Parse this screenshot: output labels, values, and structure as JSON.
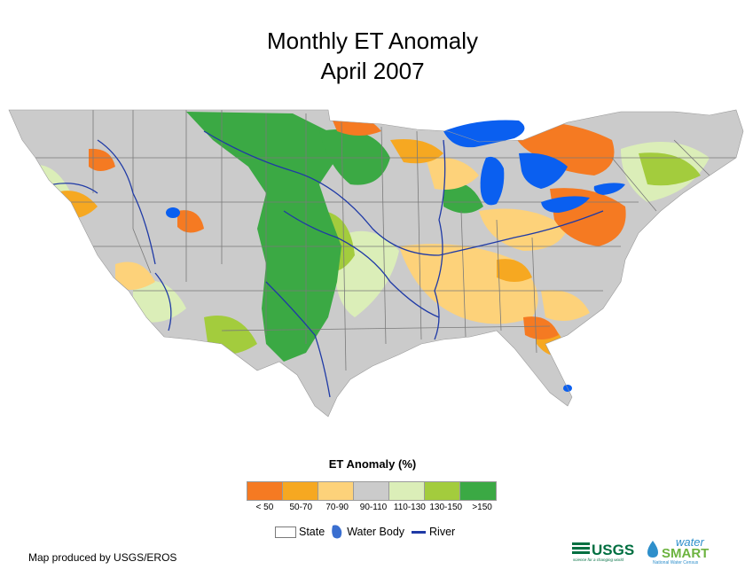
{
  "title": {
    "line1": "Monthly ET Anomaly",
    "line2": "April 2007"
  },
  "legend": {
    "title": "ET Anomaly (%)",
    "classes": [
      {
        "label": "< 50",
        "color": "#f57a22"
      },
      {
        "label": "50-70",
        "color": "#f6a821"
      },
      {
        "label": "70-90",
        "color": "#fdd27a"
      },
      {
        "label": "90-110",
        "color": "#cbcbcb"
      },
      {
        "label": "110-130",
        "color": "#dbeeb8"
      },
      {
        "label": "130-150",
        "color": "#a3cc3d"
      },
      {
        "label": ">150",
        "color": "#3ba944"
      }
    ],
    "symbols": {
      "state": "State",
      "water_body": "Water Body",
      "river": "River"
    }
  },
  "colors": {
    "water": "#0a5ff0",
    "river": "#1f3aa6",
    "state_line": "#7a7a7a",
    "usgs_green": "#006f41",
    "watersmart_blue": "#2e8fcb",
    "watersmart_green": "#6cb33f"
  },
  "credit": "Map produced by USGS/EROS",
  "logos": {
    "usgs": "USGS",
    "usgs_tagline": "science for a changing world",
    "watersmart_top": "water",
    "watersmart_bottom": "SMART",
    "watersmart_tagline": "National Water Census"
  }
}
